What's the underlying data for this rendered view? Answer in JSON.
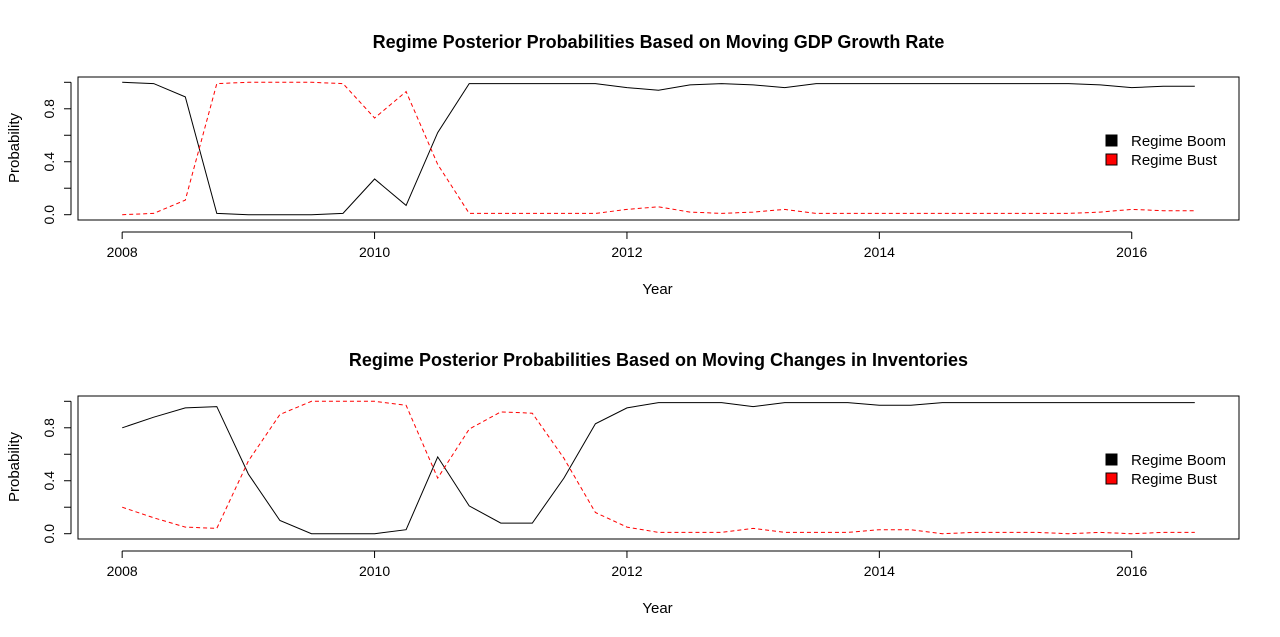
{
  "chart_data": [
    {
      "type": "line",
      "title": "Regime Posterior Probabilities Based on Moving GDP Growth Rate",
      "xlabel": "Year",
      "ylabel": "Probability",
      "xlim": [
        2007.65,
        2016.85
      ],
      "ylim": [
        -0.04,
        1.04
      ],
      "x_ticks": [
        2008,
        2010,
        2012,
        2014,
        2016
      ],
      "y_ticks": [
        0.0,
        0.4,
        0.8
      ],
      "x_tick_labels": [
        "2008",
        "2010",
        "2012",
        "2014",
        "2016"
      ],
      "y_tick_labels": [
        "0.0",
        "0.4",
        "0.8"
      ],
      "legend_position": "right",
      "x": [
        2008.0,
        2008.25,
        2008.5,
        2008.75,
        2009.0,
        2009.25,
        2009.5,
        2009.75,
        2010.0,
        2010.25,
        2010.5,
        2010.75,
        2011.0,
        2011.25,
        2011.5,
        2011.75,
        2012.0,
        2012.25,
        2012.5,
        2012.75,
        2013.0,
        2013.25,
        2013.5,
        2013.75,
        2014.0,
        2014.25,
        2014.5,
        2014.75,
        2015.0,
        2015.25,
        2015.5,
        2015.75,
        2016.0,
        2016.25,
        2016.5
      ],
      "series": [
        {
          "name": "Regime Boom",
          "color": "#000000",
          "dash": "solid",
          "values": [
            1.0,
            0.99,
            0.89,
            0.01,
            0.0,
            0.0,
            0.0,
            0.01,
            0.27,
            0.07,
            0.62,
            0.99,
            0.99,
            0.99,
            0.99,
            0.99,
            0.96,
            0.94,
            0.98,
            0.99,
            0.98,
            0.96,
            0.99,
            0.99,
            0.99,
            0.99,
            0.99,
            0.99,
            0.99,
            0.99,
            0.99,
            0.98,
            0.96,
            0.97,
            0.97
          ]
        },
        {
          "name": "Regime Bust",
          "color": "#ff0000",
          "dash": "dashed",
          "values": [
            0.0,
            0.01,
            0.11,
            0.99,
            1.0,
            1.0,
            1.0,
            0.99,
            0.73,
            0.93,
            0.38,
            0.01,
            0.01,
            0.01,
            0.01,
            0.01,
            0.04,
            0.06,
            0.02,
            0.01,
            0.02,
            0.04,
            0.01,
            0.01,
            0.01,
            0.01,
            0.01,
            0.01,
            0.01,
            0.01,
            0.01,
            0.02,
            0.04,
            0.03,
            0.03
          ]
        }
      ]
    },
    {
      "type": "line",
      "title": "Regime Posterior Probabilities Based on Moving Changes in Inventories",
      "xlabel": "Year",
      "ylabel": "Probability",
      "xlim": [
        2007.65,
        2016.85
      ],
      "ylim": [
        -0.04,
        1.04
      ],
      "x_ticks": [
        2008,
        2010,
        2012,
        2014,
        2016
      ],
      "y_ticks": [
        0.0,
        0.4,
        0.8
      ],
      "x_tick_labels": [
        "2008",
        "2010",
        "2012",
        "2014",
        "2016"
      ],
      "y_tick_labels": [
        "0.0",
        "0.4",
        "0.8"
      ],
      "legend_position": "right",
      "x": [
        2008.0,
        2008.25,
        2008.5,
        2008.75,
        2009.0,
        2009.25,
        2009.5,
        2009.75,
        2010.0,
        2010.25,
        2010.5,
        2010.75,
        2011.0,
        2011.25,
        2011.5,
        2011.75,
        2012.0,
        2012.25,
        2012.5,
        2012.75,
        2013.0,
        2013.25,
        2013.5,
        2013.75,
        2014.0,
        2014.25,
        2014.5,
        2014.75,
        2015.0,
        2015.25,
        2015.5,
        2015.75,
        2016.0,
        2016.25,
        2016.5
      ],
      "series": [
        {
          "name": "Regime Boom",
          "color": "#000000",
          "dash": "solid",
          "values": [
            0.8,
            0.88,
            0.95,
            0.96,
            0.45,
            0.1,
            0.0,
            0.0,
            0.0,
            0.03,
            0.58,
            0.21,
            0.08,
            0.08,
            0.42,
            0.83,
            0.95,
            0.99,
            0.99,
            0.99,
            0.96,
            0.99,
            0.99,
            0.99,
            0.97,
            0.97,
            0.99,
            0.99,
            0.99,
            0.99,
            0.99,
            0.99,
            0.99,
            0.99,
            0.99
          ]
        },
        {
          "name": "Regime Bust",
          "color": "#ff0000",
          "dash": "dashed",
          "values": [
            0.2,
            0.12,
            0.05,
            0.04,
            0.55,
            0.9,
            1.0,
            1.0,
            1.0,
            0.97,
            0.42,
            0.79,
            0.92,
            0.91,
            0.57,
            0.16,
            0.05,
            0.01,
            0.01,
            0.01,
            0.04,
            0.01,
            0.01,
            0.01,
            0.03,
            0.03,
            0.0,
            0.01,
            0.01,
            0.01,
            0.0,
            0.01,
            0.0,
            0.01,
            0.01
          ]
        }
      ]
    }
  ]
}
